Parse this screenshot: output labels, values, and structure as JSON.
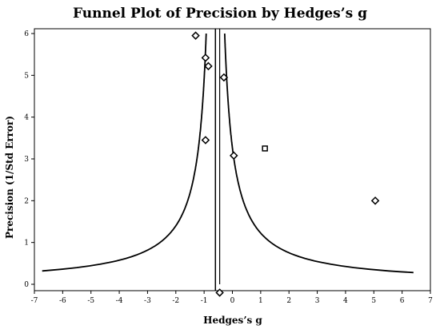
{
  "chart_data": {
    "type": "scatter",
    "title": "Funnel Plot of Precision by Hedges’s g",
    "xlabel": "Hedges’s g",
    "ylabel": "Precision (1/Std Error)",
    "xlim": [
      -7,
      7
    ],
    "ylim": [
      0,
      6
    ],
    "x_ticks": [
      -7,
      -6,
      -5,
      -4,
      -3,
      -2,
      -1,
      0,
      1,
      2,
      3,
      4,
      5,
      6,
      7
    ],
    "y_ticks": [
      0,
      1,
      2,
      3,
      4,
      5,
      6
    ],
    "grid": false,
    "center_line_x": -0.6,
    "center_line2_x": -0.45,
    "funnel_z": 1.96,
    "points": [
      {
        "x": -1.3,
        "y": 5.95,
        "marker": "diamond"
      },
      {
        "x": -0.95,
        "y": 5.42,
        "marker": "diamond"
      },
      {
        "x": -0.85,
        "y": 5.22,
        "marker": "diamond"
      },
      {
        "x": -0.3,
        "y": 4.95,
        "marker": "diamond"
      },
      {
        "x": -0.95,
        "y": 3.45,
        "marker": "diamond"
      },
      {
        "x": 0.05,
        "y": 3.08,
        "marker": "diamond"
      },
      {
        "x": 1.15,
        "y": 3.25,
        "marker": "square"
      },
      {
        "x": 5.05,
        "y": 2.0,
        "marker": "diamond"
      },
      {
        "x": -0.45,
        "y": -0.2,
        "marker": "diamond"
      }
    ]
  }
}
